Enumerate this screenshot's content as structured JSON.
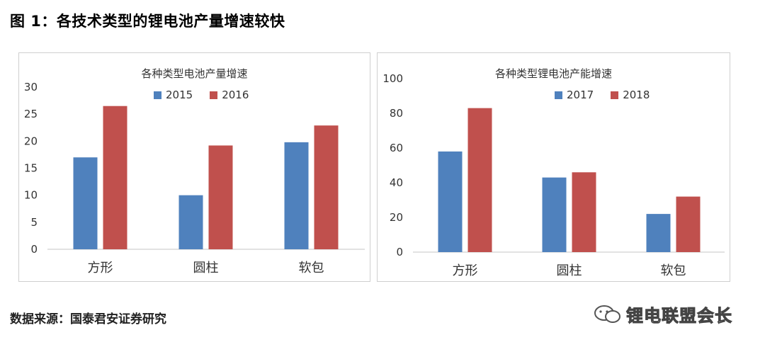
{
  "figure_title": "图 1：各技术类型的锂电池产量增速较快",
  "source": "数据来源：国泰君安证券研究",
  "watermark": "锂电联盟会长",
  "colors": {
    "series_a": "#4f81bd",
    "series_b": "#c0504d",
    "axis": "#d9d9d9",
    "border": "#cfcfcf"
  },
  "chart_data": [
    {
      "type": "bar",
      "title": "各种类型电池产量增速",
      "categories": [
        "方形",
        "圆柱",
        "软包"
      ],
      "series": [
        {
          "name": "2015",
          "values": [
            17,
            10,
            19.8
          ]
        },
        {
          "name": "2016",
          "values": [
            26.5,
            19.2,
            22.9
          ]
        }
      ],
      "ylim": [
        0,
        30
      ],
      "yticks": [
        "0",
        "5",
        "10",
        "15",
        "20",
        "25",
        "30"
      ],
      "grid": false,
      "legend": "top-center"
    },
    {
      "type": "bar",
      "title": "各种类型锂电池产能增速",
      "categories": [
        "方形",
        "圆柱",
        "软包"
      ],
      "series": [
        {
          "name": "2017",
          "values": [
            58,
            43,
            22
          ]
        },
        {
          "name": "2018",
          "values": [
            83,
            46,
            32
          ]
        }
      ],
      "ylim": [
        0,
        100
      ],
      "yticks": [
        "0",
        "20",
        "40",
        "60",
        "80",
        "100"
      ],
      "grid": false,
      "legend": "top-center"
    }
  ]
}
